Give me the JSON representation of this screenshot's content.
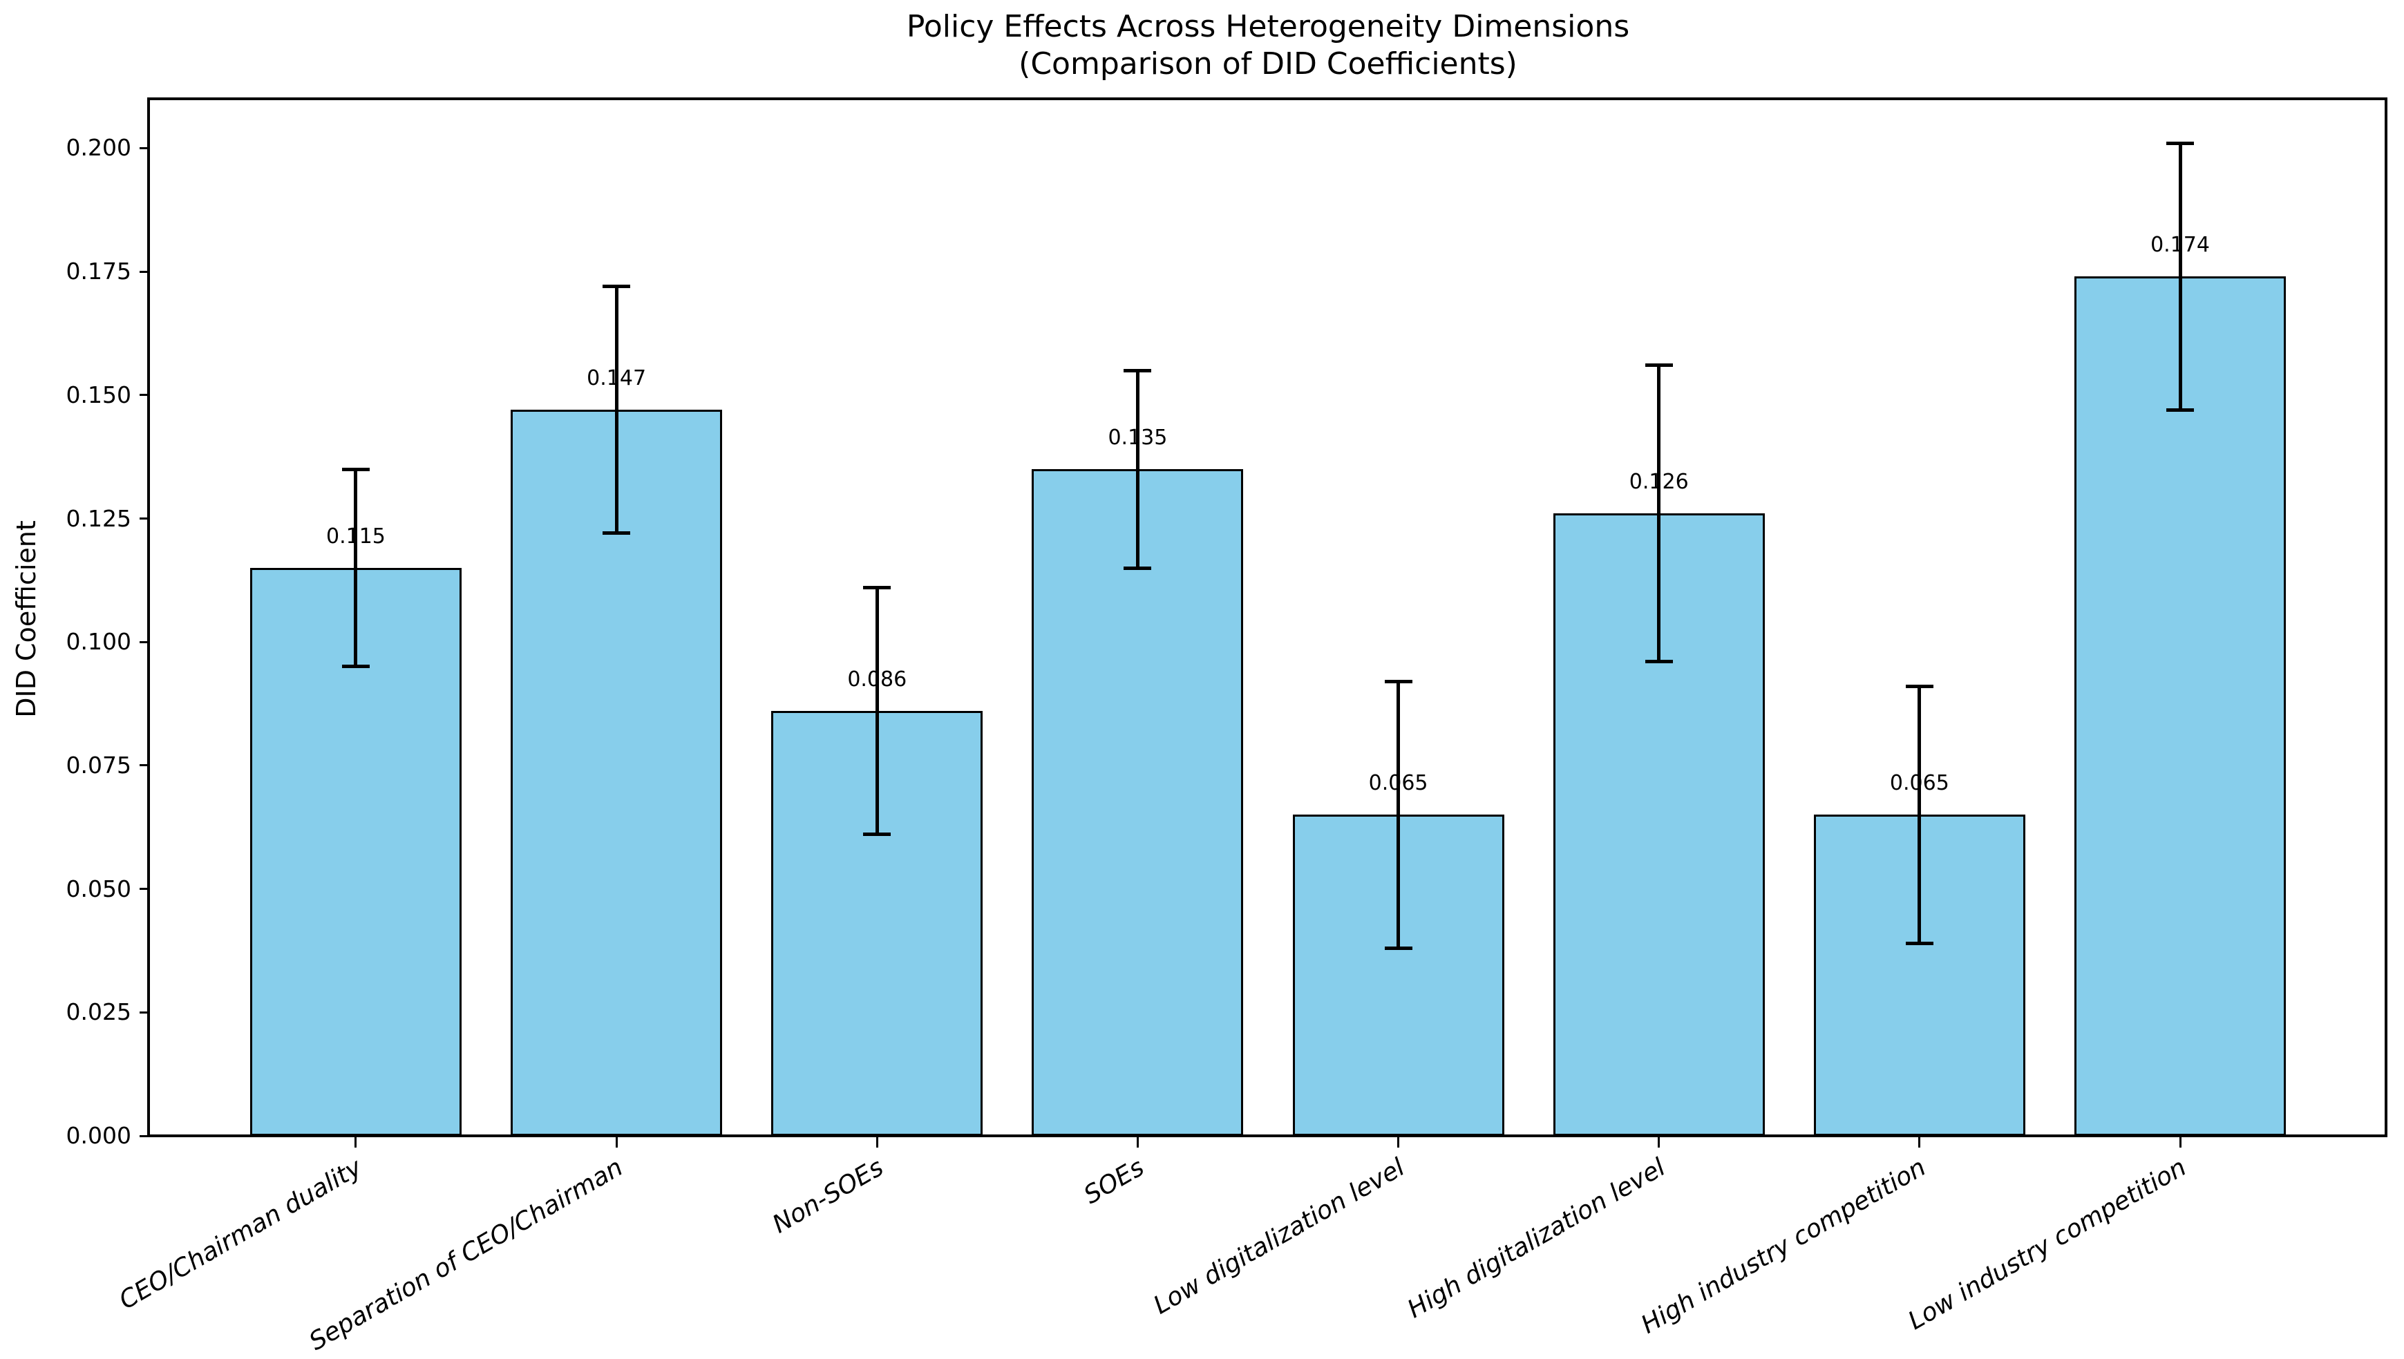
{
  "figure": {
    "title": "Policy Effects Across Heterogeneity Dimensions",
    "subtitle": "(Comparison of DID Coefficients)"
  },
  "chart_data": {
    "type": "bar",
    "title": "Policy Effects Across Heterogeneity Dimensions",
    "subtitle": "(Comparison of DID Coefficients)",
    "xlabel": "",
    "ylabel": "DID Coefficient",
    "categories": [
      "CEO/Chairman duality",
      "Separation of CEO/Chairman",
      "Non-SOEs",
      "SOEs",
      "Low digitalization level",
      "High digitalization level",
      "High industry competition",
      "Low industry competition"
    ],
    "values": [
      0.115,
      0.147,
      0.086,
      0.135,
      0.065,
      0.126,
      0.065,
      0.174
    ],
    "value_labels": [
      "0.115",
      "0.147",
      "0.086",
      "0.135",
      "0.065",
      "0.126",
      "0.065",
      "0.174"
    ],
    "error_bars": [
      0.02,
      0.025,
      0.025,
      0.02,
      0.027,
      0.03,
      0.026,
      0.027
    ],
    "ci_low": [
      0.095,
      0.122,
      0.061,
      0.115,
      0.038,
      0.096,
      0.039,
      0.147
    ],
    "ci_high": [
      0.135,
      0.172,
      0.111,
      0.155,
      0.092,
      0.156,
      0.091,
      0.201
    ],
    "ylim": [
      0,
      0.21
    ],
    "yticks": [
      0.0,
      0.025,
      0.05,
      0.075,
      0.1,
      0.125,
      0.15,
      0.175,
      0.2
    ],
    "ytick_labels": [
      "0.000",
      "0.025",
      "0.050",
      "0.075",
      "0.100",
      "0.125",
      "0.150",
      "0.175",
      "0.200"
    ],
    "x_tick_rotation_deg": 30,
    "grid": false,
    "legend": null,
    "bar_color": "#87CEEB",
    "bar_edge_color": "#000000",
    "error_color": "#000000",
    "background_color": "#FFFFFF",
    "text_color": "#000000"
  }
}
